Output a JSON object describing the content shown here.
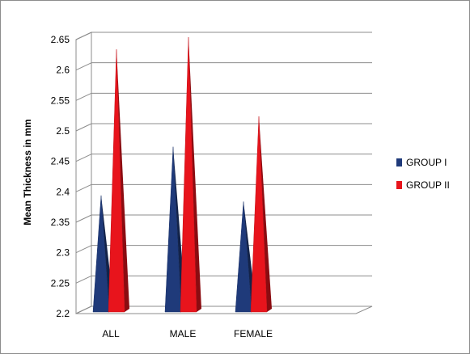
{
  "chart_data": {
    "type": "bar",
    "bar_shape": "3d-cone",
    "title": "",
    "xlabel": "",
    "ylabel": "Mean Thickness in mm",
    "ylim": [
      2.2,
      2.65
    ],
    "yticks": [
      2.2,
      2.25,
      2.3,
      2.35,
      2.4,
      2.45,
      2.5,
      2.55,
      2.6,
      2.65
    ],
    "ytick_labels": [
      "2.2",
      "2.25",
      "2.3",
      "2.35",
      "2.4",
      "2.45",
      "2.5",
      "2.55",
      "2.6",
      "2.65"
    ],
    "categories": [
      "ALL",
      "MALE",
      "FEMALE"
    ],
    "series": [
      {
        "name": "GROUP I",
        "color": "#1f3a7a",
        "values": [
          2.39,
          2.47,
          2.38
        ]
      },
      {
        "name": "GROUP II",
        "color": "#e8141c",
        "values": [
          2.63,
          2.65,
          2.52
        ]
      }
    ],
    "grid": true,
    "legend_position": "right"
  }
}
